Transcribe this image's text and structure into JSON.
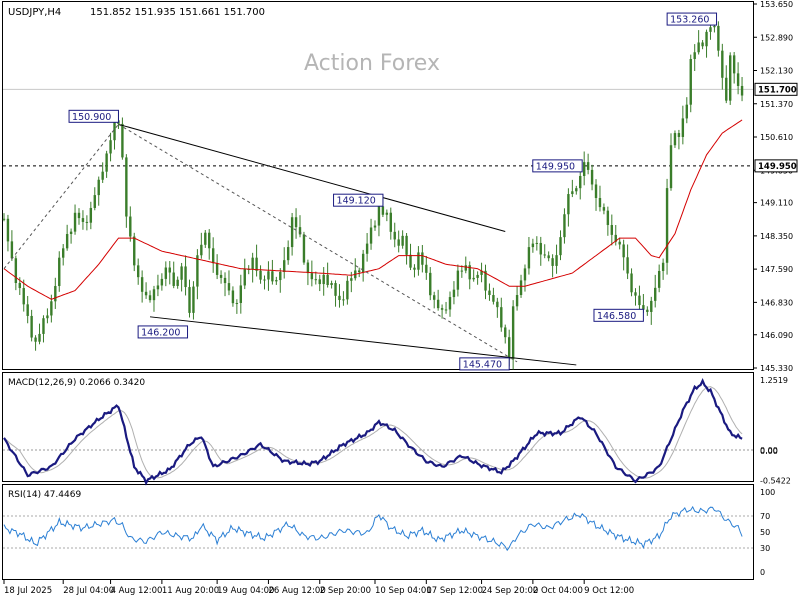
{
  "header": {
    "symbol": "USDJPY,H4",
    "ohlc": "151.852 151.935 151.661 151.700",
    "watermark": "Action Forex"
  },
  "chart_data": {
    "type": "candlestick",
    "main": {
      "ylim": [
        145.33,
        153.65
      ],
      "yticks": [
        "153.650",
        "152.890",
        "152.130",
        "151.370",
        "150.610",
        "149.850",
        "149.110",
        "148.350",
        "147.590",
        "146.830",
        "146.090",
        "145.330"
      ],
      "current_price": {
        "value": 151.7,
        "label": "151.700"
      },
      "level_line": {
        "value": 149.95,
        "label": "149.950"
      },
      "annotations": [
        {
          "text": "150.900",
          "x": 29.0,
          "y": 150.9
        },
        {
          "text": "146.200",
          "x": 46.5,
          "y": 146.2
        },
        {
          "text": "149.120",
          "x": 95.0,
          "y": 149.12
        },
        {
          "text": "145.470",
          "x": 128.0,
          "y": 145.47
        },
        {
          "text": "149.950",
          "x": 147.0,
          "y": 149.95
        },
        {
          "text": "146.580",
          "x": 162.0,
          "y": 146.58
        },
        {
          "text": "153.260",
          "x": 178.0,
          "y": 153.26
        }
      ],
      "trendlines": [
        {
          "style": "solid",
          "points": [
            [
              29.0,
              150.9
            ],
            [
              127.0,
              148.45
            ]
          ]
        },
        {
          "style": "solid",
          "points": [
            [
              37.0,
              146.5
            ],
            [
              145.0,
              145.4
            ]
          ]
        },
        {
          "style": "dashed",
          "points": [
            [
              29.0,
              150.9
            ],
            [
              130.0,
              145.47
            ]
          ]
        },
        {
          "style": "dashed",
          "points": [
            [
              0,
              147.6
            ],
            [
              29.0,
              150.9
            ]
          ]
        }
      ],
      "anchors": [
        [
          0,
          148.6
        ],
        [
          2,
          147.8
        ],
        [
          4,
          147.1
        ],
        [
          6,
          146.4
        ],
        [
          8,
          145.95
        ],
        [
          10,
          146.3
        ],
        [
          12,
          146.9
        ],
        [
          14,
          147.7
        ],
        [
          16,
          148.4
        ],
        [
          18,
          148.8
        ],
        [
          20,
          148.6
        ],
        [
          22,
          149.0
        ],
        [
          24,
          149.5
        ],
        [
          26,
          150.3
        ],
        [
          28,
          150.85
        ],
        [
          29,
          150.9
        ],
        [
          30,
          150.2
        ],
        [
          31,
          148.9
        ],
        [
          33,
          147.6
        ],
        [
          35,
          147.2
        ],
        [
          37,
          146.8
        ],
        [
          39,
          147.3
        ],
        [
          41,
          147.6
        ],
        [
          43,
          147.2
        ],
        [
          45,
          147.7
        ],
        [
          47,
          146.5
        ],
        [
          49,
          148.0
        ],
        [
          51,
          148.3
        ],
        [
          53,
          147.8
        ],
        [
          55,
          147.3
        ],
        [
          57,
          147.1
        ],
        [
          59,
          146.8
        ],
        [
          61,
          147.5
        ],
        [
          63,
          147.9
        ],
        [
          65,
          147.2
        ],
        [
          67,
          147.6
        ],
        [
          69,
          147.2
        ],
        [
          71,
          147.8
        ],
        [
          73,
          148.7
        ],
        [
          75,
          148.3
        ],
        [
          77,
          147.5
        ],
        [
          79,
          147.2
        ],
        [
          81,
          147.5
        ],
        [
          83,
          147.1
        ],
        [
          85,
          146.9
        ],
        [
          87,
          147.2
        ],
        [
          89,
          147.5
        ],
        [
          91,
          147.9
        ],
        [
          93,
          148.4
        ],
        [
          95,
          149.05
        ],
        [
          97,
          148.7
        ],
        [
          99,
          148.3
        ],
        [
          101,
          148.2
        ],
        [
          103,
          147.6
        ],
        [
          105,
          147.9
        ],
        [
          107,
          147.4
        ],
        [
          109,
          146.9
        ],
        [
          111,
          146.5
        ],
        [
          113,
          147.0
        ],
        [
          115,
          147.4
        ],
        [
          117,
          147.7
        ],
        [
          119,
          147.3
        ],
        [
          121,
          147.5
        ],
        [
          123,
          147.0
        ],
        [
          125,
          146.6
        ],
        [
          127,
          146.1
        ],
        [
          128,
          145.55
        ],
        [
          129,
          146.6
        ],
        [
          131,
          147.4
        ],
        [
          133,
          148.0
        ],
        [
          135,
          148.2
        ],
        [
          137,
          147.9
        ],
        [
          139,
          147.6
        ],
        [
          141,
          148.4
        ],
        [
          143,
          149.2
        ],
        [
          145,
          149.55
        ],
        [
          147,
          149.95
        ],
        [
          149,
          149.6
        ],
        [
          151,
          149.0
        ],
        [
          153,
          148.6
        ],
        [
          155,
          148.3
        ],
        [
          157,
          147.8
        ],
        [
          159,
          147.2
        ],
        [
          161,
          146.7
        ],
        [
          162,
          146.58
        ],
        [
          164,
          146.9
        ],
        [
          166,
          147.4
        ],
        [
          167,
          147.8
        ],
        [
          168,
          149.5
        ],
        [
          169,
          150.5
        ],
        [
          171,
          150.6
        ],
        [
          173,
          151.5
        ],
        [
          174,
          152.3
        ],
        [
          176,
          152.7
        ],
        [
          178,
          153.0
        ],
        [
          179,
          153.1
        ],
        [
          180,
          153.0
        ],
        [
          181,
          152.7
        ],
        [
          182,
          152.0
        ],
        [
          183,
          151.5
        ],
        [
          184,
          152.3
        ],
        [
          185,
          152.1
        ],
        [
          186,
          151.8
        ],
        [
          187,
          151.7
        ]
      ],
      "ma_anchors": [
        [
          0,
          147.6
        ],
        [
          6,
          147.2
        ],
        [
          12,
          146.9
        ],
        [
          18,
          147.1
        ],
        [
          24,
          147.7
        ],
        [
          29,
          148.3
        ],
        [
          33,
          148.3
        ],
        [
          40,
          148.0
        ],
        [
          50,
          147.8
        ],
        [
          60,
          147.6
        ],
        [
          70,
          147.55
        ],
        [
          80,
          147.5
        ],
        [
          88,
          147.45
        ],
        [
          95,
          147.6
        ],
        [
          100,
          147.9
        ],
        [
          106,
          147.9
        ],
        [
          112,
          147.7
        ],
        [
          120,
          147.6
        ],
        [
          128,
          147.2
        ],
        [
          132,
          147.2
        ],
        [
          138,
          147.35
        ],
        [
          144,
          147.5
        ],
        [
          150,
          147.9
        ],
        [
          156,
          148.3
        ],
        [
          160,
          148.3
        ],
        [
          164,
          147.9
        ],
        [
          166,
          147.85
        ],
        [
          170,
          148.4
        ],
        [
          174,
          149.4
        ],
        [
          178,
          150.2
        ],
        [
          182,
          150.7
        ],
        [
          187,
          151.0
        ]
      ]
    },
    "macd": {
      "label": "MACD(12,26,9) 0.2066 0.3420",
      "ylim": [
        -0.5422,
        1.2519
      ],
      "ytick_labels": [
        "1.2519",
        "0.00",
        "0.00",
        "-0.5422"
      ],
      "anchors": [
        [
          0,
          0.2
        ],
        [
          6,
          -0.45
        ],
        [
          12,
          -0.3
        ],
        [
          18,
          0.2
        ],
        [
          24,
          0.55
        ],
        [
          29,
          0.8
        ],
        [
          33,
          -0.3
        ],
        [
          36,
          -0.55
        ],
        [
          42,
          -0.35
        ],
        [
          47,
          0.1
        ],
        [
          50,
          0.25
        ],
        [
          53,
          -0.3
        ],
        [
          60,
          -0.1
        ],
        [
          65,
          0.1
        ],
        [
          71,
          -0.2
        ],
        [
          77,
          -0.25
        ],
        [
          80,
          -0.2
        ],
        [
          86,
          0.1
        ],
        [
          92,
          0.3
        ],
        [
          95,
          0.5
        ],
        [
          99,
          0.35
        ],
        [
          103,
          0.05
        ],
        [
          107,
          -0.2
        ],
        [
          111,
          -0.3
        ],
        [
          116,
          -0.1
        ],
        [
          120,
          -0.25
        ],
        [
          126,
          -0.4
        ],
        [
          129,
          -0.2
        ],
        [
          135,
          0.3
        ],
        [
          141,
          0.3
        ],
        [
          146,
          0.6
        ],
        [
          150,
          0.3
        ],
        [
          155,
          -0.3
        ],
        [
          160,
          -0.55
        ],
        [
          164,
          -0.4
        ],
        [
          166,
          -0.3
        ],
        [
          169,
          0.2
        ],
        [
          172,
          0.7
        ],
        [
          175,
          1.1
        ],
        [
          177,
          1.2
        ],
        [
          179,
          1.05
        ],
        [
          182,
          0.6
        ],
        [
          184,
          0.3
        ],
        [
          187,
          0.2
        ]
      ]
    },
    "rsi": {
      "label": "RSI(14) 47.4469",
      "ylim": [
        0,
        100
      ],
      "ytick_labels": [
        "100",
        "70",
        "50",
        "30",
        "0"
      ],
      "anchors": [
        [
          0,
          55
        ],
        [
          4,
          48
        ],
        [
          8,
          35
        ],
        [
          14,
          62
        ],
        [
          20,
          55
        ],
        [
          24,
          60
        ],
        [
          28,
          65
        ],
        [
          30,
          58
        ],
        [
          32,
          42
        ],
        [
          36,
          38
        ],
        [
          40,
          50
        ],
        [
          44,
          45
        ],
        [
          48,
          42
        ],
        [
          50,
          58
        ],
        [
          54,
          40
        ],
        [
          58,
          55
        ],
        [
          62,
          48
        ],
        [
          66,
          42
        ],
        [
          72,
          60
        ],
        [
          76,
          45
        ],
        [
          80,
          42
        ],
        [
          86,
          52
        ],
        [
          92,
          48
        ],
        [
          95,
          72
        ],
        [
          98,
          55
        ],
        [
          102,
          45
        ],
        [
          106,
          52
        ],
        [
          110,
          40
        ],
        [
          116,
          52
        ],
        [
          120,
          45
        ],
        [
          124,
          38
        ],
        [
          128,
          30
        ],
        [
          130,
          45
        ],
        [
          134,
          60
        ],
        [
          138,
          55
        ],
        [
          142,
          65
        ],
        [
          146,
          72
        ],
        [
          150,
          58
        ],
        [
          154,
          48
        ],
        [
          158,
          40
        ],
        [
          162,
          35
        ],
        [
          166,
          45
        ],
        [
          169,
          70
        ],
        [
          173,
          78
        ],
        [
          177,
          76
        ],
        [
          180,
          80
        ],
        [
          183,
          65
        ],
        [
          186,
          55
        ],
        [
          187,
          47
        ]
      ]
    },
    "xaxis": {
      "range": [
        0,
        188
      ],
      "ticks": [
        {
          "x": 0,
          "label": "18 Jul 2025"
        },
        {
          "x": 15,
          "label": "28 Jul 04:00"
        },
        {
          "x": 27,
          "label": "4 Aug 12:00"
        },
        {
          "x": 40,
          "label": "11 Aug 20:00"
        },
        {
          "x": 54,
          "label": "19 Aug 04:00"
        },
        {
          "x": 67,
          "label": "26 Aug 12:00"
        },
        {
          "x": 80,
          "label": "2 Sep 20:00"
        },
        {
          "x": 94,
          "label": "10 Sep 04:00"
        },
        {
          "x": 107,
          "label": "17 Sep 12:00"
        },
        {
          "x": 121,
          "label": "24 Sep 20:00"
        },
        {
          "x": 134,
          "label": "2 Oct 04:00"
        },
        {
          "x": 147,
          "label": "9 Oct 12:00"
        }
      ]
    },
    "colors": {
      "price": "#3a7d2a",
      "ma": "#d40000",
      "macd": "#1a1a80",
      "signal": "#b0b0b0",
      "rsi": "#2b7fd4"
    }
  }
}
